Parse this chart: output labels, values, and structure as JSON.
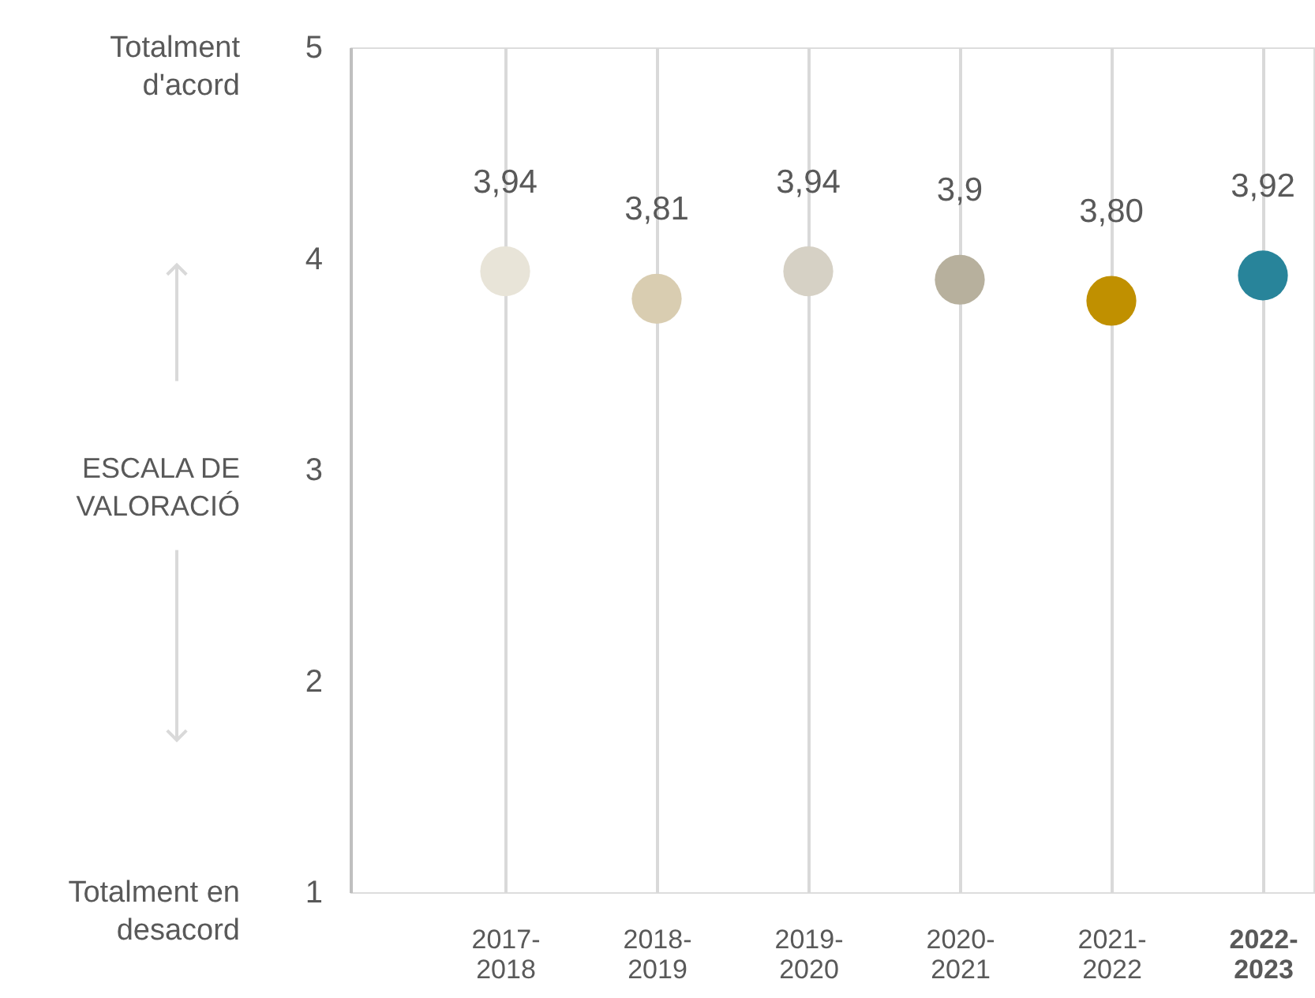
{
  "chart_data": {
    "type": "scatter",
    "categories": [
      "2017-2018",
      "2018-2019",
      "2019-2020",
      "2020-2021",
      "2021-2022",
      "2022-2023"
    ],
    "values": [
      3.94,
      3.81,
      3.94,
      3.9,
      3.8,
      3.92
    ],
    "value_labels": [
      "3,94",
      "3,81",
      "3,94",
      "3,9",
      "3,80",
      "3,92"
    ],
    "colors": [
      "#e8e4d8",
      "#d9cdb1",
      "#d6d1c5",
      "#b7b09d",
      "#c09000",
      "#28849a"
    ],
    "ylim": [
      1,
      5
    ],
    "yticks": [
      1,
      2,
      3,
      4,
      5
    ],
    "annotations": [
      "Totalment\nd'acord",
      "Totalment en\ndesacord",
      "ESCALA DE\nVALORACIÓ"
    ],
    "grid": "x",
    "marker": "circle",
    "legend": false
  }
}
